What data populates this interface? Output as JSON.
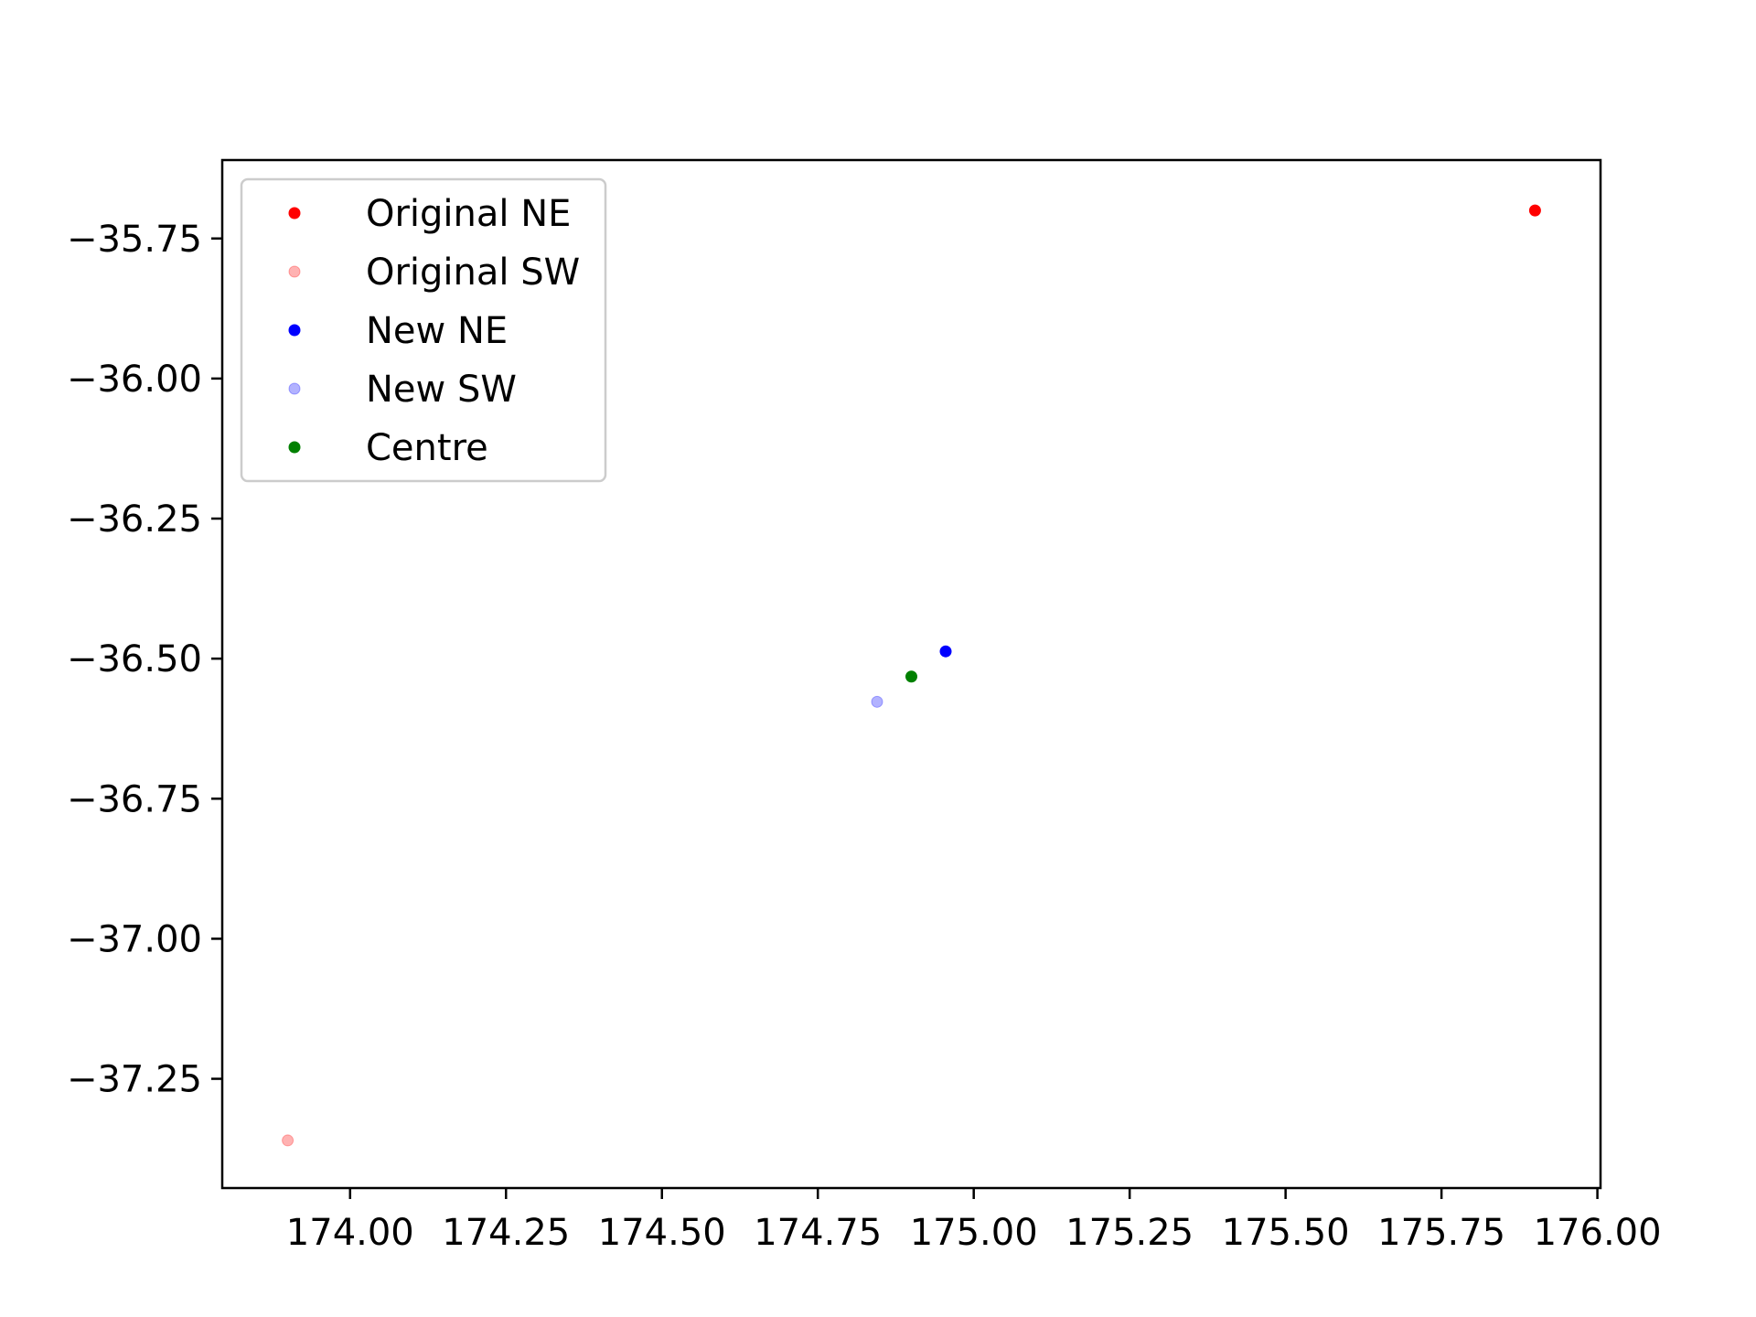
{
  "chart_data": {
    "type": "scatter",
    "title": "",
    "xlabel": "",
    "ylabel": "",
    "xlim": [
      173.795,
      176.005
    ],
    "ylim": [
      -37.445,
      -35.61
    ],
    "grid": false,
    "legend_position": "upper-left",
    "x_ticks": [
      {
        "value": 174.0,
        "label": "174.00"
      },
      {
        "value": 174.25,
        "label": "174.25"
      },
      {
        "value": 174.5,
        "label": "174.50"
      },
      {
        "value": 174.75,
        "label": "174.75"
      },
      {
        "value": 175.0,
        "label": "175.00"
      },
      {
        "value": 175.25,
        "label": "175.25"
      },
      {
        "value": 175.5,
        "label": "175.50"
      },
      {
        "value": 175.75,
        "label": "175.75"
      },
      {
        "value": 176.0,
        "label": "176.00"
      }
    ],
    "y_ticks": [
      {
        "value": -35.75,
        "label": "−35.75"
      },
      {
        "value": -36.0,
        "label": "−36.00"
      },
      {
        "value": -36.25,
        "label": "−36.25"
      },
      {
        "value": -36.5,
        "label": "−36.50"
      },
      {
        "value": -36.75,
        "label": "−36.75"
      },
      {
        "value": -37.0,
        "label": "−37.00"
      },
      {
        "value": -37.25,
        "label": "−37.25"
      }
    ],
    "series": [
      {
        "name": "Original NE",
        "color": "#ff0000",
        "alpha": 1.0,
        "points": [
          {
            "x": 175.9,
            "y": -35.7
          }
        ]
      },
      {
        "name": "Original SW",
        "color": "#ff0000",
        "alpha": 0.3,
        "points": [
          {
            "x": 173.9,
            "y": -37.36
          }
        ]
      },
      {
        "name": "New NE",
        "color": "#0000ff",
        "alpha": 1.0,
        "points": [
          {
            "x": 174.955,
            "y": -36.487
          }
        ]
      },
      {
        "name": "New SW",
        "color": "#0000ff",
        "alpha": 0.3,
        "points": [
          {
            "x": 174.845,
            "y": -36.577
          }
        ]
      },
      {
        "name": "Centre",
        "color": "#008000",
        "alpha": 1.0,
        "points": [
          {
            "x": 174.9,
            "y": -36.532
          }
        ]
      }
    ]
  }
}
